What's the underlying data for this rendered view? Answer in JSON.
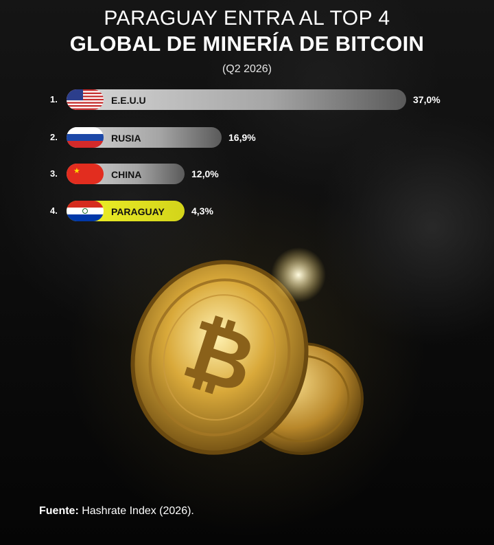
{
  "chart_data": {
    "type": "bar",
    "title": "PARAGUAY ENTRA AL TOP 4",
    "title_line2": "GLOBAL DE MINERÍA DE BITCOIN",
    "subtitle": "(Q2 2026)",
    "categories": [
      "E.E.U.U",
      "RUSIA",
      "CHINA",
      "PARAGUAY"
    ],
    "ranks": [
      "1.",
      "2.",
      "3.",
      "4."
    ],
    "values": [
      37.0,
      16.9,
      12.0,
      4.3
    ],
    "value_labels": [
      "37,0%",
      "16,9%",
      "12,0%",
      "4,3%"
    ],
    "flags": [
      "usa-flag-icon",
      "russia-flag-icon",
      "china-flag-icon",
      "paraguay-flag-icon"
    ],
    "highlight": "PARAGUAY",
    "highlight_color": "#ecec22",
    "bar_color": "#c8c8c8",
    "orientation": "horizontal",
    "grid": false
  },
  "source": {
    "label": "Fuente:",
    "text": " Hashrate Index (2026)."
  }
}
